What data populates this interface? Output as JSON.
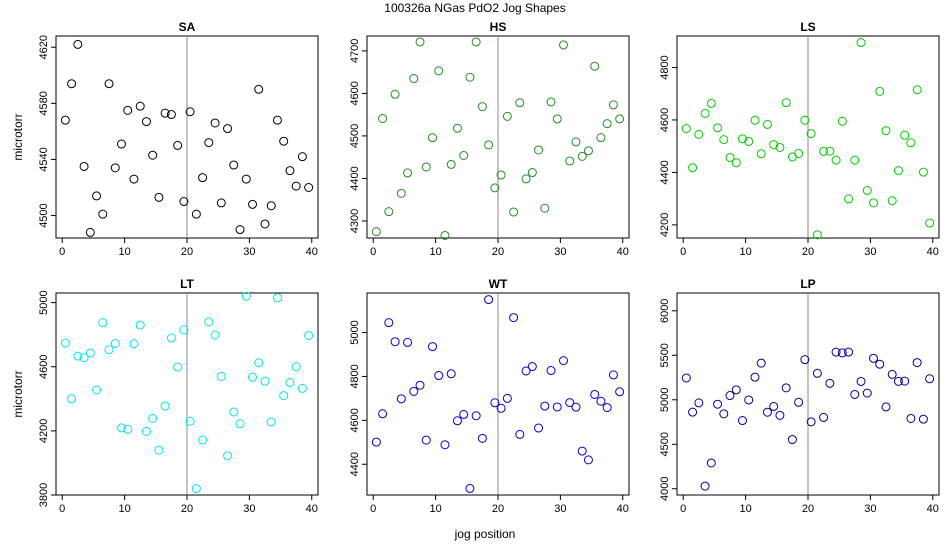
{
  "figure": {
    "title": "100326a   NGas PdO2 Jog Shapes",
    "xlabel": "jog position"
  },
  "chart_data": [
    {
      "type": "scatter",
      "title": "SA",
      "ylabel": "microtorr",
      "color": "#000000",
      "xlim": [
        -1,
        41
      ],
      "ylim": [
        4484,
        4628
      ],
      "xticks": [
        0,
        10,
        20,
        30,
        40
      ],
      "yticks": [
        4500,
        4540,
        4580,
        4620
      ],
      "vline": 20,
      "x": [
        0.5,
        1.5,
        2.5,
        3.5,
        4.5,
        5.5,
        6.5,
        7.5,
        8.5,
        9.5,
        10.5,
        11.5,
        12.5,
        13.5,
        14.5,
        15.5,
        16.5,
        17.5,
        18.5,
        19.5,
        20.5,
        21.5,
        22.5,
        23.5,
        24.5,
        25.5,
        26.5,
        27.5,
        28.5,
        29.5,
        30.5,
        31.5,
        32.5,
        33.5,
        34.5,
        35.5,
        36.5,
        37.5,
        38.5,
        39.5
      ],
      "y": [
        4568,
        4594,
        4622,
        4535,
        4488,
        4514,
        4501,
        4594,
        4534,
        4551,
        4575,
        4526,
        4578,
        4567,
        4543,
        4513,
        4573,
        4572,
        4550,
        4510,
        4574,
        4501,
        4527,
        4552,
        4566,
        4509,
        4562,
        4536,
        4490,
        4526,
        4508,
        4590,
        4494,
        4507,
        4568,
        4553,
        4532,
        4521,
        4542,
        4520
      ]
    },
    {
      "type": "scatter",
      "title": "HS",
      "ylabel": "",
      "color": "#228B22",
      "xlim": [
        -1,
        41
      ],
      "ylim": [
        4260,
        4735
      ],
      "xticks": [
        0,
        10,
        20,
        30,
        40
      ],
      "yticks": [
        4300,
        4400,
        4500,
        4600,
        4700
      ],
      "vline": 20,
      "x": [
        0.5,
        1.5,
        2.5,
        3.5,
        4.5,
        5.5,
        6.5,
        7.5,
        8.5,
        9.5,
        10.5,
        11.5,
        12.5,
        13.5,
        14.5,
        15.5,
        16.5,
        17.5,
        18.5,
        19.5,
        20.5,
        21.5,
        22.5,
        23.5,
        24.5,
        25.5,
        26.5,
        27.5,
        28.5,
        29.5,
        30.5,
        31.5,
        32.5,
        33.5,
        34.5,
        35.5,
        36.5,
        37.5,
        38.5,
        39.5
      ],
      "y": [
        4275,
        4541,
        4322,
        4598,
        4365,
        4413,
        4635,
        4721,
        4427,
        4496,
        4653,
        4266,
        4433,
        4518,
        4454,
        4638,
        4721,
        4569,
        4479,
        4378,
        4408,
        4546,
        4321,
        4578,
        4399,
        4414,
        4467,
        4330,
        4580,
        4540,
        4714,
        4441,
        4486,
        4452,
        4465,
        4664,
        4496,
        4529,
        4573,
        4540
      ]
    },
    {
      "type": "scatter",
      "title": "LS",
      "ylabel": "",
      "color": "#00CC00",
      "xlim": [
        -1,
        41
      ],
      "ylim": [
        4150,
        4920
      ],
      "xticks": [
        0,
        10,
        20,
        30,
        40
      ],
      "yticks": [
        4200,
        4400,
        4600,
        4800
      ],
      "vline": 20,
      "x": [
        0.5,
        1.5,
        2.5,
        3.5,
        4.5,
        5.5,
        6.5,
        7.5,
        8.5,
        9.5,
        10.5,
        11.5,
        12.5,
        13.5,
        14.5,
        15.5,
        16.5,
        17.5,
        18.5,
        19.5,
        20.5,
        21.5,
        22.5,
        23.5,
        24.5,
        25.5,
        26.5,
        27.5,
        28.5,
        29.5,
        30.5,
        31.5,
        32.5,
        33.5,
        34.5,
        35.5,
        36.5,
        37.5,
        38.5,
        39.5
      ],
      "y": [
        4567,
        4418,
        4545,
        4625,
        4663,
        4570,
        4525,
        4457,
        4437,
        4528,
        4518,
        4599,
        4471,
        4583,
        4506,
        4495,
        4666,
        4459,
        4472,
        4599,
        4548,
        4162,
        4480,
        4481,
        4447,
        4595,
        4299,
        4447,
        4895,
        4331,
        4284,
        4709,
        4559,
        4292,
        4407,
        4542,
        4513,
        4715,
        4401,
        4207
      ]
    },
    {
      "type": "scatter",
      "title": "LT",
      "ylabel": "microtorr",
      "color": "#00E5EE",
      "xlim": [
        -1,
        41
      ],
      "ylim": [
        3800,
        5060
      ],
      "xticks": [
        0,
        10,
        20,
        30,
        40
      ],
      "yticks": [
        3800,
        4200,
        4600,
        5000
      ],
      "vline": 20,
      "x": [
        0.5,
        1.5,
        2.5,
        3.5,
        4.5,
        5.5,
        6.5,
        7.5,
        8.5,
        9.5,
        10.5,
        11.5,
        12.5,
        13.5,
        14.5,
        15.5,
        16.5,
        17.5,
        18.5,
        19.5,
        20.5,
        21.5,
        22.5,
        23.5,
        24.5,
        25.5,
        26.5,
        27.5,
        28.5,
        29.5,
        30.5,
        31.5,
        32.5,
        33.5,
        34.5,
        35.5,
        36.5,
        37.5,
        38.5,
        39.5
      ],
      "y": [
        4748,
        4400,
        4666,
        4656,
        4686,
        4455,
        4875,
        4706,
        4745,
        4219,
        4210,
        4743,
        4860,
        4197,
        4278,
        4080,
        4355,
        4780,
        4598,
        4830,
        4260,
        3840,
        4143,
        4880,
        4798,
        4540,
        4045,
        4318,
        4245,
        5040,
        4535,
        4625,
        4510,
        4255,
        5030,
        4420,
        4502,
        4600,
        4465,
        4795
      ]
    },
    {
      "type": "scatter",
      "title": "WT",
      "ylabel": "",
      "color": "#0000CD",
      "xlim": [
        -1,
        41
      ],
      "ylim": [
        4260,
        5180
      ],
      "xticks": [
        0,
        10,
        20,
        30,
        40
      ],
      "yticks": [
        4400,
        4600,
        4800,
        5000
      ],
      "vline": 20,
      "x": [
        0.5,
        1.5,
        2.5,
        3.5,
        4.5,
        5.5,
        6.5,
        7.5,
        8.5,
        9.5,
        10.5,
        11.5,
        12.5,
        13.5,
        14.5,
        15.5,
        16.5,
        17.5,
        18.5,
        19.5,
        20.5,
        21.5,
        22.5,
        23.5,
        24.5,
        25.5,
        26.5,
        27.5,
        28.5,
        29.5,
        30.5,
        31.5,
        32.5,
        33.5,
        34.5,
        35.5,
        36.5,
        37.5,
        38.5,
        39.5
      ],
      "y": [
        4501,
        4630,
        5045,
        4958,
        4698,
        4955,
        4732,
        4760,
        4510,
        4936,
        4804,
        4489,
        4812,
        4598,
        4627,
        4290,
        4621,
        4518,
        5150,
        4680,
        4655,
        4700,
        5068,
        4536,
        4825,
        4845,
        4565,
        4665,
        4827,
        4661,
        4872,
        4681,
        4660,
        4460,
        4420,
        4718,
        4687,
        4658,
        4807,
        4730
      ]
    },
    {
      "type": "scatter",
      "title": "LP",
      "ylabel": "",
      "color": "#00008B",
      "xlim": [
        -1,
        41
      ],
      "ylim": [
        3930,
        6200
      ],
      "xticks": [
        0,
        10,
        20,
        30,
        40
      ],
      "yticks": [
        4000,
        4500,
        5000,
        5500,
        6000
      ],
      "vline": 20,
      "x": [
        0.5,
        1.5,
        2.5,
        3.5,
        4.5,
        5.5,
        6.5,
        7.5,
        8.5,
        9.5,
        10.5,
        11.5,
        12.5,
        13.5,
        14.5,
        15.5,
        16.5,
        17.5,
        18.5,
        19.5,
        20.5,
        21.5,
        22.5,
        23.5,
        24.5,
        25.5,
        26.5,
        27.5,
        28.5,
        29.5,
        30.5,
        31.5,
        32.5,
        33.5,
        34.5,
        35.5,
        36.5,
        37.5,
        38.5,
        39.5
      ],
      "y": [
        5245,
        4861,
        4965,
        4030,
        4290,
        4950,
        4842,
        5048,
        5112,
        4767,
        4998,
        5254,
        5412,
        4860,
        4925,
        4825,
        5134,
        4553,
        4972,
        5451,
        4752,
        5298,
        4802,
        5185,
        5536,
        5527,
        5536,
        5060,
        5206,
        5075,
        5466,
        5400,
        4920,
        5285,
        5207,
        5210,
        4790,
        5418,
        4782,
        5236
      ]
    }
  ]
}
